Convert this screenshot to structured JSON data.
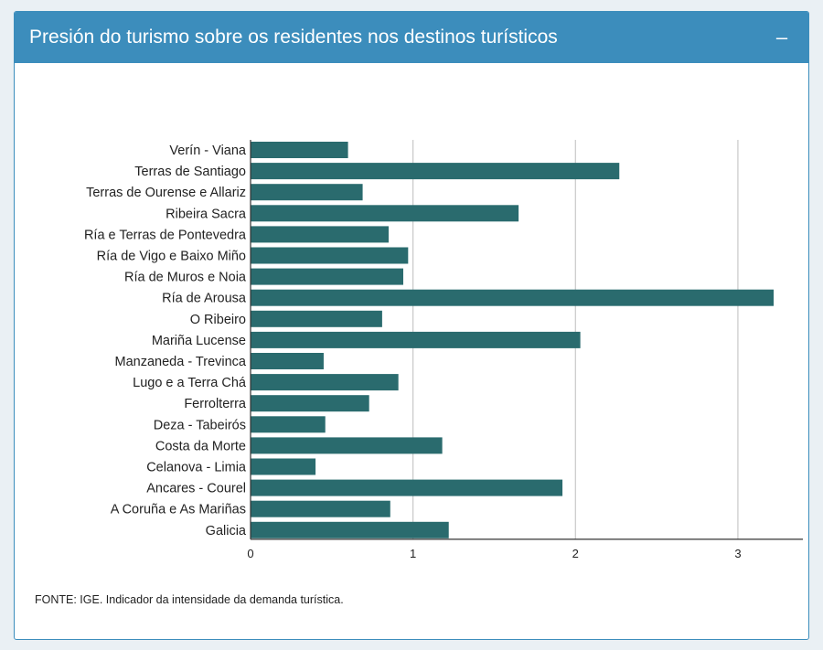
{
  "header": {
    "title": "Presión do turismo sobre os residentes nos destinos turísticos"
  },
  "controls": {
    "collapse_label": "–"
  },
  "footer": {
    "source": "FONTE: IGE. Indicador da intensidade da demanda turística."
  },
  "colors": {
    "header": "#3c8dbc",
    "bar": "#2a6b6e",
    "grid": "#c8c8c8",
    "axis": "#333333"
  },
  "chart_data": {
    "type": "bar",
    "orientation": "horizontal",
    "title": "",
    "xlabel": "",
    "ylabel": "",
    "xlim": [
      0,
      3.4
    ],
    "xticks": [
      0,
      1,
      2,
      3
    ],
    "grid": true,
    "categories": [
      "Verín - Viana",
      "Terras de Santiago",
      "Terras de Ourense e Allariz",
      "Ribeira Sacra",
      "Ría e Terras de Pontevedra",
      "Ría de Vigo e Baixo Miño",
      "Ría de Muros e Noia",
      "Ría de Arousa",
      "O Ribeiro",
      "Mariña Lucense",
      "Manzaneda - Trevinca",
      "Lugo e a Terra Chá",
      "Ferrolterra",
      "Deza - Tabeirós",
      "Costa da Morte",
      "Celanova - Limia",
      "Ancares - Courel",
      "A Coruña e As Mariñas",
      "Galicia"
    ],
    "values": [
      0.6,
      2.27,
      0.69,
      1.65,
      0.85,
      0.97,
      0.94,
      3.22,
      0.81,
      2.03,
      0.45,
      0.91,
      0.73,
      0.46,
      1.18,
      0.4,
      1.92,
      0.86,
      1.22
    ]
  }
}
